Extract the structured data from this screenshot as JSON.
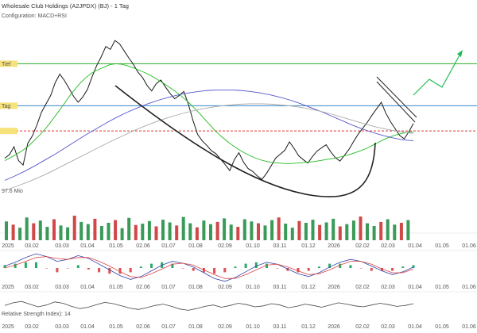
{
  "header": {
    "title": "Wholesale Club Holdings (A2JPDX) (BJ) - 1 Tag",
    "subtitle": "Configuration: MACD+RSI"
  },
  "chart_data": {
    "type": "line",
    "price_panel": {
      "horizontal_lines": [
        {
          "label": "Tief",
          "value": 103.6,
          "color": "#2ca82c",
          "style": "solid"
        },
        {
          "label": "Tag",
          "value": 95.1,
          "color": "#3a86c8",
          "style": "solid"
        },
        {
          "label": "",
          "value": 90.0,
          "color": "#e03030",
          "style": "dashed"
        }
      ],
      "low_annotation": "97.6 Mio",
      "series": [
        {
          "color": "#1a1a1a",
          "values": [
            84.5,
            85.2,
            86.8,
            84.0,
            83.1,
            87.5,
            89.0,
            91.2,
            93.8,
            95.5,
            97.2,
            99.8,
            101.5,
            100.2,
            98.6,
            97.0,
            95.8,
            96.9,
            98.4,
            100.9,
            103.2,
            105.0,
            107.1,
            106.5,
            108.3,
            107.6,
            106.2,
            104.8,
            103.5,
            101.9,
            100.8,
            99.2,
            98.1,
            99.6,
            100.3,
            98.9,
            97.6,
            96.5,
            97.2,
            98.0,
            95.4,
            92.1,
            89.3,
            88.0,
            87.1,
            86.0,
            85.4,
            84.3,
            83.2,
            82.0,
            84.2,
            85.6,
            83.7,
            82.4,
            81.8,
            80.9,
            80.2,
            81.4,
            82.9,
            84.5,
            85.3,
            86.1,
            87.8,
            86.5,
            85.0,
            84.2,
            83.5,
            84.8,
            85.9,
            86.6,
            87.2,
            85.8,
            84.6,
            83.9,
            85.1,
            86.3,
            87.9,
            89.4,
            90.6,
            91.8,
            93.2,
            94.5,
            95.8,
            93.6,
            91.9,
            90.5,
            89.1,
            88.4,
            89.8,
            91.5
          ]
        },
        {
          "color": "#22bb22",
          "values": [
            84.0,
            84.6,
            85.3,
            86.0,
            86.9,
            88.0,
            89.2,
            90.5,
            92.0,
            93.6,
            95.2,
            96.9,
            98.4,
            99.8,
            100.9,
            101.8,
            102.4,
            102.9,
            103.4,
            103.6,
            103.5,
            103.2,
            102.8,
            102.3,
            101.8,
            101.2,
            100.5,
            99.8,
            99.0,
            98.2,
            97.3,
            96.3,
            95.2,
            94.0,
            92.7,
            91.4,
            90.1,
            89.0,
            88.0,
            87.1,
            86.3,
            85.6,
            85.0,
            84.5,
            84.1,
            83.8,
            83.6,
            83.5,
            83.4,
            83.4,
            83.5,
            83.6,
            83.7,
            83.8,
            84.0,
            84.2,
            84.4,
            84.6,
            84.9,
            85.2,
            85.6,
            86.0,
            86.5,
            87.1,
            87.7,
            88.3,
            88.8,
            89.2,
            89.5,
            89.7,
            89.8
          ]
        },
        {
          "color": "#5555cc",
          "values": [
            80.0,
            80.9,
            81.9,
            83.0,
            84.2,
            85.4,
            86.7,
            88.0,
            89.3,
            90.5,
            91.7,
            92.8,
            93.8,
            94.7,
            95.5,
            96.2,
            96.8,
            97.3,
            97.7,
            98.0,
            98.2,
            98.3,
            98.3,
            98.2,
            98.0,
            97.7,
            97.3,
            96.8,
            96.2,
            95.5,
            94.7,
            93.9,
            93.0,
            92.1,
            91.2,
            90.4,
            89.7,
            89.1,
            88.6,
            88.2,
            88.0
          ]
        },
        {
          "color": "#aaaaaa",
          "values": [
            78.0,
            78.8,
            79.7,
            80.7,
            81.8,
            83.0,
            84.2,
            85.4,
            86.6,
            87.8,
            88.9,
            90.0,
            91.0,
            91.9,
            92.7,
            93.4,
            94.0,
            94.5,
            94.9,
            95.2,
            95.4,
            95.5,
            95.5,
            95.4,
            95.2,
            94.9,
            94.5,
            94.0,
            93.4,
            92.7,
            92.0,
            91.3,
            90.7,
            90.2,
            89.8,
            89.5
          ]
        }
      ]
    },
    "volume_panel": {
      "values": [
        42,
        35,
        28,
        51,
        38,
        44,
        30,
        47,
        33,
        29,
        55,
        41,
        36,
        48,
        32,
        39,
        45,
        27,
        50,
        34,
        37,
        43,
        31,
        46,
        40,
        33,
        52,
        38,
        29,
        44,
        36,
        41,
        49,
        35,
        30,
        47,
        42,
        38,
        33,
        45,
        51,
        37,
        28,
        43,
        39,
        46,
        34,
        40,
        48,
        31,
        36,
        44,
        53,
        38,
        32,
        41,
        47,
        35,
        39,
        45
      ]
    },
    "macd_panel": {
      "series": [
        {
          "name": "",
          "color": "#3344aa",
          "values": [
            0.2,
            0.6,
            1.1,
            1.5,
            1.2,
            0.7,
            0.9,
            1.3,
            1.0,
            0.4,
            -0.2,
            -0.8,
            -1.2,
            -0.9,
            -0.3,
            0.3,
            0.7,
            0.5,
            0.1,
            -0.5,
            -1.1,
            -1.4,
            -1.0,
            -0.4,
            0.2,
            0.6,
            0.4,
            -0.1,
            -0.6,
            -0.9,
            -0.5,
            0.1,
            0.6,
            0.9,
            0.7,
            0.2,
            -0.3,
            -0.7,
            -0.4,
            0.1
          ]
        },
        {
          "name": "",
          "color": "#dd4444",
          "values": [
            0.0,
            0.3,
            0.7,
            1.1,
            1.2,
            1.0,
            0.9,
            1.1,
            1.1,
            0.7,
            0.2,
            -0.4,
            -0.9,
            -1.0,
            -0.6,
            -0.1,
            0.4,
            0.5,
            0.3,
            -0.2,
            -0.7,
            -1.1,
            -1.1,
            -0.7,
            -0.2,
            0.3,
            0.4,
            0.1,
            -0.3,
            -0.7,
            -0.6,
            -0.2,
            0.3,
            0.7,
            0.7,
            0.4,
            -0.1,
            -0.5,
            -0.5,
            -0.1
          ]
        }
      ]
    },
    "rsi_panel": {
      "label": "Relative Strength Index): 14",
      "values": [
        52,
        58,
        61,
        55,
        49,
        53,
        60,
        57,
        50,
        45,
        48,
        54,
        59,
        56,
        51,
        46,
        43,
        47,
        52,
        55,
        50,
        44,
        41,
        45,
        50,
        53,
        48,
        52,
        57,
        54,
        49,
        51,
        56,
        53,
        47,
        50,
        55,
        52,
        48,
        53,
        58,
        55,
        51,
        49,
        53,
        57,
        54,
        50,
        52,
        56
      ]
    },
    "x_axis": {
      "ticks": [
        "2025",
        "03.02",
        "03.03",
        "01.04",
        "01.05",
        "02.06",
        "01.07",
        "01.08",
        "02.09",
        "01.10",
        "03.11",
        "01.12",
        "2026",
        "02.02",
        "02.03",
        "01.04",
        "01.05",
        "01.06"
      ]
    }
  }
}
